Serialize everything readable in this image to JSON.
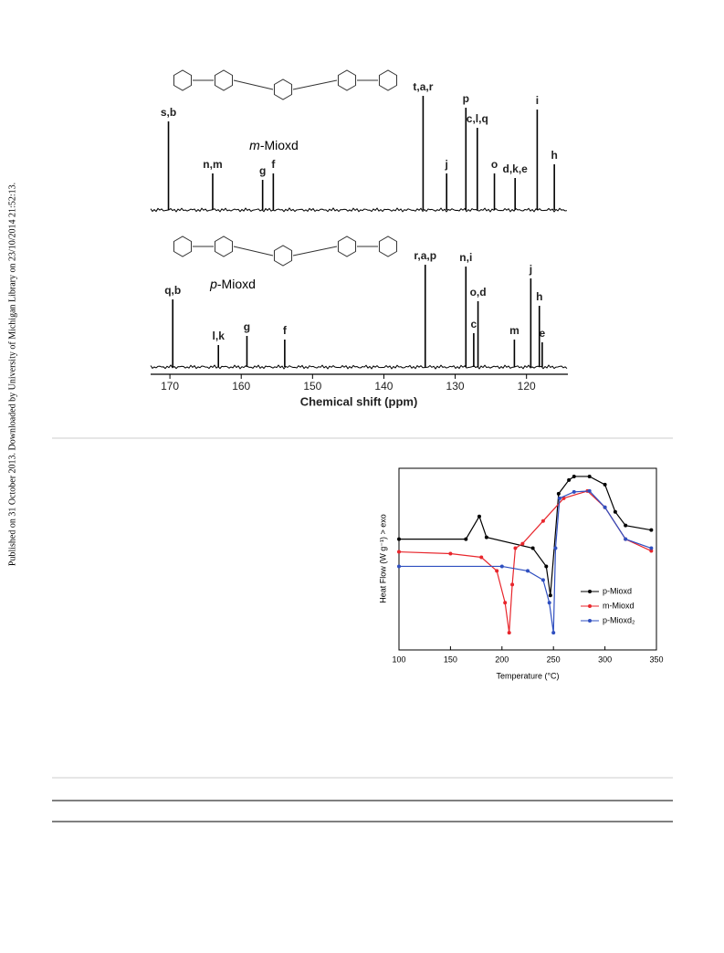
{
  "sidebar": "Published on 31 October 2013. Downloaded by University of Michigan Library on 23/10/2014 21:52:13.",
  "nmr_figure": {
    "x_label": "Chemical shift (ppm)",
    "xlim": [
      172.7,
      114.2
    ],
    "xticks": [
      170,
      160,
      150,
      140,
      130,
      120
    ],
    "intensity_lim": [
      0,
      130
    ],
    "spectra": [
      {
        "name_prefix": "m",
        "name_suffix": "-Mioxd",
        "peaks": [
          {
            "label": "s,b",
            "ppm": 170.2,
            "intensity": 97
          },
          {
            "label": "n,m",
            "ppm": 164.0,
            "intensity": 40
          },
          {
            "label": "g",
            "ppm": 157.0,
            "intensity": 33
          },
          {
            "label": "f",
            "ppm": 155.5,
            "intensity": 40
          },
          {
            "label": "t,a,r",
            "ppm": 134.5,
            "intensity": 125
          },
          {
            "label": "j",
            "ppm": 131.2,
            "intensity": 40
          },
          {
            "label": "p",
            "ppm": 128.5,
            "intensity": 112
          },
          {
            "label": "c,l,q",
            "ppm": 126.9,
            "intensity": 90
          },
          {
            "label": "o",
            "ppm": 124.5,
            "intensity": 40
          },
          {
            "label": "d,k,e",
            "ppm": 121.6,
            "intensity": 35
          },
          {
            "label": "i",
            "ppm": 118.5,
            "intensity": 110
          },
          {
            "label": "h",
            "ppm": 116.1,
            "intensity": 50
          }
        ]
      },
      {
        "name_prefix": "p",
        "name_suffix": "-Mioxd",
        "peaks": [
          {
            "label": "q,b",
            "ppm": 169.6,
            "intensity": 74
          },
          {
            "label": "l,k",
            "ppm": 163.2,
            "intensity": 24
          },
          {
            "label": "g",
            "ppm": 159.2,
            "intensity": 34
          },
          {
            "label": "f",
            "ppm": 153.9,
            "intensity": 30
          },
          {
            "label": "r,a,p",
            "ppm": 134.2,
            "intensity": 112
          },
          {
            "label": "n,i",
            "ppm": 128.5,
            "intensity": 110
          },
          {
            "label": "c",
            "ppm": 127.4,
            "intensity": 37
          },
          {
            "label": "o,d",
            "ppm": 126.8,
            "intensity": 72
          },
          {
            "label": "m",
            "ppm": 121.7,
            "intensity": 30
          },
          {
            "label": "j",
            "ppm": 119.4,
            "intensity": 97
          },
          {
            "label": "h",
            "ppm": 118.2,
            "intensity": 67
          },
          {
            "label": "e",
            "ppm": 117.8,
            "intensity": 27
          }
        ]
      }
    ]
  },
  "dsc_figure": {
    "x_label": "Temperature (°C)",
    "y_label": "Heat Flow (W g⁻¹) > exo",
    "xlim": [
      100,
      350
    ],
    "xticks": [
      100,
      150,
      200,
      250,
      300,
      350
    ],
    "ylim": [
      0,
      100
    ],
    "series": [
      {
        "name": "p-Mioxd",
        "color": "#000000",
        "x": [
          100,
          165,
          178,
          185,
          230,
          243,
          247,
          255,
          265,
          270,
          285,
          300,
          310,
          320,
          345
        ],
        "values": [
          61,
          61,
          73.5,
          62,
          56,
          46,
          30,
          86,
          93.5,
          95.5,
          95.5,
          91,
          76,
          68.5,
          66
        ]
      },
      {
        "name": "m-Mioxd",
        "color": "#e8262c",
        "x": [
          100,
          150,
          180,
          195,
          203,
          207,
          210,
          213,
          220,
          240,
          260,
          283,
          300,
          320,
          345
        ],
        "values": [
          54,
          53,
          51,
          43.5,
          26,
          9.5,
          36,
          56,
          58.5,
          71,
          83.5,
          87.5,
          78.5,
          61,
          54.5
        ]
      },
      {
        "name": "p-Mioxd₂",
        "color": "#2f4fc0",
        "x": [
          100,
          200,
          225,
          240,
          246,
          250,
          252,
          256,
          270,
          285,
          300,
          320,
          345
        ],
        "values": [
          46,
          46,
          43.5,
          38.5,
          26,
          9.5,
          56,
          83.5,
          87,
          87.5,
          78.5,
          61,
          56
        ]
      }
    ]
  }
}
